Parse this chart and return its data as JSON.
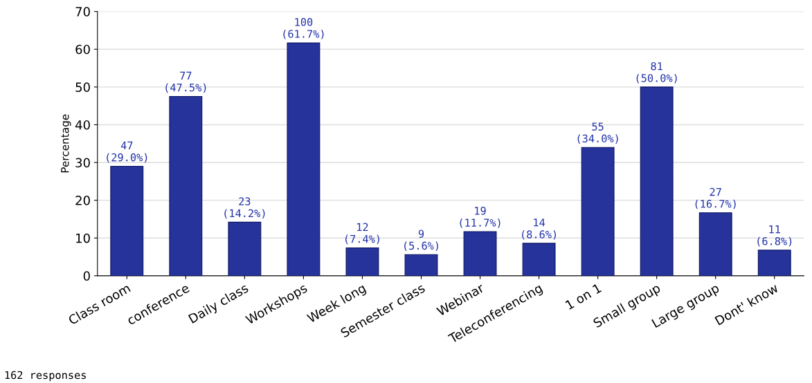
{
  "chart_data": {
    "type": "bar",
    "ylabel": "Percentage",
    "categories": [
      "Class room",
      "conference",
      "Daily class",
      "Workshops",
      "Week long",
      "Semester class",
      "Webinar",
      "Teleconferencing",
      "1 on 1",
      "Small group",
      "Large group",
      "Dont' know"
    ],
    "values": [
      29.0,
      47.5,
      14.2,
      61.7,
      7.4,
      5.6,
      11.7,
      8.6,
      34.0,
      50.0,
      16.7,
      6.8
    ],
    "value_labels": [
      "47\n(29.0%)",
      "77\n(47.5%)",
      "23\n(14.2%)",
      "100\n(61.7%)",
      "12\n(7.4%)",
      "9\n(5.6%)",
      "19\n(11.7%)",
      "14\n(8.6%)",
      "55\n(34.0%)",
      "81\n(50.0%)",
      "27\n(16.7%)",
      "11\n(6.8%)"
    ],
    "color": "#25339a",
    "ylim": [
      0,
      70
    ],
    "yticks": [
      0,
      10,
      20,
      30,
      40,
      50,
      60,
      70
    ],
    "grid": "y",
    "annotations": [
      "162 responses"
    ]
  }
}
